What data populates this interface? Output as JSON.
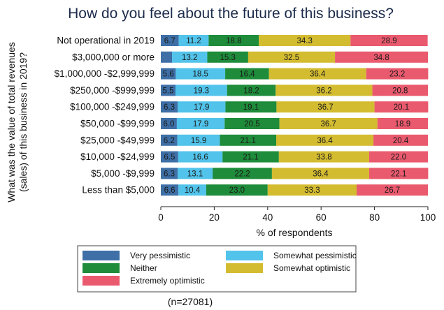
{
  "chart_data": {
    "type": "bar",
    "orientation": "horizontal-stacked",
    "title": "How do you feel about the future of this business?",
    "ylabel": [
      "What was the value of total revenues",
      "(sales) of this business in 2019?"
    ],
    "xlabel": "% of respondents",
    "xlim": [
      0,
      100
    ],
    "xticks": [
      "0",
      "20",
      "40",
      "60",
      "80",
      "100"
    ],
    "categories": [
      "Not operational in 2019",
      "$3,000,000 or more",
      "$1,000,000 -$2,999,999",
      "$250,000 -$999,999",
      "$100,000 -$249,999",
      "$50,000 -$99,999",
      "$25,000 -$49,999",
      "$10,000 -$24,999",
      "$5,000 -$9,999",
      "Less than $5,000"
    ],
    "series": [
      {
        "name": "Very pessimistic",
        "color": "#3e6fa6",
        "values": [
          6.7,
          4.2,
          5.6,
          5.5,
          6.3,
          6.0,
          6.2,
          6.5,
          6.3,
          6.6
        ],
        "labels": [
          "6.7",
          "",
          "5.6",
          "5.5",
          "6.3",
          "6.0",
          "6.2",
          "6.5",
          "6.3",
          "6.6"
        ]
      },
      {
        "name": "Somewhat pessimistic",
        "color": "#52c3ea",
        "values": [
          11.2,
          13.2,
          18.5,
          19.3,
          17.9,
          17.9,
          15.9,
          16.6,
          13.1,
          10.4
        ],
        "labels": [
          "11.2",
          "13.2",
          "18.5",
          "19.3",
          "17.9",
          "17.9",
          "15.9",
          "16.6",
          "13.1",
          "10.4"
        ]
      },
      {
        "name": "Neither",
        "color": "#1e8c3a",
        "values": [
          18.8,
          15.3,
          16.4,
          18.2,
          19.1,
          20.5,
          21.1,
          21.1,
          22.2,
          23.0
        ],
        "labels": [
          "18.8",
          "15.3",
          "16.4",
          "18.2",
          "19.1",
          "20.5",
          "21.1",
          "21.1",
          "22.2",
          "23.0"
        ]
      },
      {
        "name": "Somewhat optimistic",
        "color": "#d4bc31",
        "values": [
          34.3,
          32.5,
          36.4,
          36.2,
          36.7,
          36.7,
          36.4,
          33.8,
          36.4,
          33.3
        ],
        "labels": [
          "34.3",
          "32.5",
          "36.4",
          "36.2",
          "36.7",
          "36.7",
          "36.4",
          "33.8",
          "36.4",
          "33.3"
        ]
      },
      {
        "name": "Extremely optimistic",
        "color": "#ea5a6e",
        "values": [
          28.9,
          34.8,
          23.2,
          20.8,
          20.1,
          18.9,
          20.4,
          22.0,
          22.1,
          26.7
        ],
        "labels": [
          "28.9",
          "34.8",
          "23.2",
          "20.8",
          "20.1",
          "18.9",
          "20.4",
          "22.0",
          "22.1",
          "26.7"
        ]
      }
    ],
    "legend": {
      "placement": "bottom",
      "items": [
        "Very pessimistic",
        "Somewhat pessimistic",
        "Neither",
        "Somewhat optimistic",
        "Extremely optimistic"
      ]
    },
    "note": "(n=27081)",
    "grid": false
  }
}
